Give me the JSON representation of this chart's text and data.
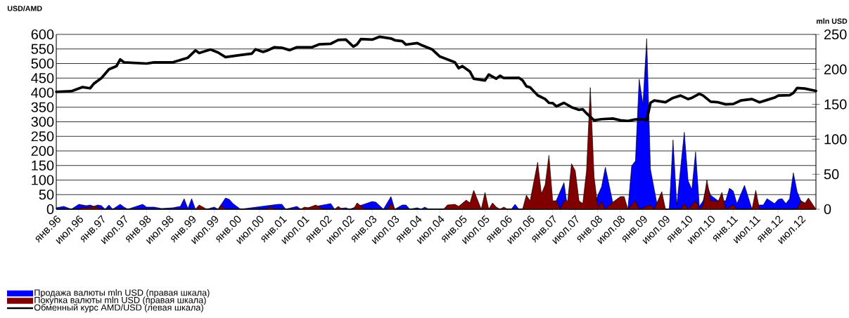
{
  "chart_data": {
    "type": "area",
    "ylabel": "USD/AMD",
    "y2label": "mln USD",
    "xlim": [
      "1996-01",
      "2012-11"
    ],
    "xticks": [
      {
        "value": "1996-01",
        "label": "янв.96"
      },
      {
        "value": "1996-07",
        "label": "июл.96"
      },
      {
        "value": "1997-01",
        "label": "янв.97"
      },
      {
        "value": "1997-07",
        "label": "июл.97"
      },
      {
        "value": "1998-01",
        "label": "янв.98"
      },
      {
        "value": "1998-07",
        "label": "июл.98"
      },
      {
        "value": "1999-01",
        "label": "янв.99"
      },
      {
        "value": "1999-07",
        "label": "июл.99"
      },
      {
        "value": "2000-01",
        "label": "янв.00"
      },
      {
        "value": "2000-07",
        "label": "июл.00"
      },
      {
        "value": "2001-01",
        "label": "янв.01"
      },
      {
        "value": "2001-07",
        "label": "июл.01"
      },
      {
        "value": "2002-01",
        "label": "янв.02"
      },
      {
        "value": "2002-07",
        "label": "июл.02"
      },
      {
        "value": "2003-01",
        "label": "янв.03"
      },
      {
        "value": "2003-07",
        "label": "июл.03"
      },
      {
        "value": "2004-01",
        "label": "янв.04"
      },
      {
        "value": "2004-07",
        "label": "июл.04"
      },
      {
        "value": "2005-01",
        "label": "янв.05"
      },
      {
        "value": "2005-07",
        "label": "июл.05"
      },
      {
        "value": "2006-01",
        "label": "янв.06"
      },
      {
        "value": "2006-07",
        "label": "июл.06"
      },
      {
        "value": "2007-01",
        "label": "янв.07"
      },
      {
        "value": "2007-07",
        "label": "июл.07"
      },
      {
        "value": "2008-01",
        "label": "янв.08"
      },
      {
        "value": "2008-07",
        "label": "июл.08"
      },
      {
        "value": "2009-01",
        "label": "янв.09"
      },
      {
        "value": "2009-07",
        "label": "июл.09"
      },
      {
        "value": "2010-01",
        "label": "янв.10"
      },
      {
        "value": "2010-07",
        "label": "июл.10"
      },
      {
        "value": "2011-01",
        "label": "янв.11"
      },
      {
        "value": "2011-07",
        "label": "июл.11"
      },
      {
        "value": "2012-01",
        "label": "янв.12"
      },
      {
        "value": "2012-07",
        "label": "июл.12"
      }
    ],
    "ylim": [
      0,
      600
    ],
    "yticks": [
      0,
      50,
      100,
      150,
      200,
      250,
      300,
      350,
      400,
      450,
      500,
      550,
      600
    ],
    "y2lim": [
      0,
      250
    ],
    "y2ticks": [
      0,
      50,
      100,
      150,
      200,
      250
    ],
    "grid": "y",
    "legend": "bottom left",
    "series": [
      {
        "name": "Продажа валюты mln USD (правая шкала)",
        "axis": "y2",
        "color": "#0000ff",
        "x": [
          "1996-01",
          "1996-03",
          "1996-05",
          "1996-07",
          "1996-09",
          "1996-10",
          "1996-11",
          "1996-12",
          "1997-01",
          "1997-02",
          "1997-03",
          "1997-04",
          "1997-06",
          "1997-07",
          "1997-08",
          "1997-12",
          "1998-01",
          "1998-03",
          "1998-05",
          "1998-08",
          "1998-10",
          "1998-11",
          "1998-12",
          "1999-01",
          "1999-02",
          "1999-05",
          "1999-07",
          "1999-08",
          "1999-10",
          "1999-11",
          "1999-12",
          "2000-02",
          "2000-12",
          "2001-01",
          "2001-02",
          "2001-05",
          "2001-06",
          "2002-02",
          "2002-03",
          "2002-06",
          "2002-07",
          "2003-01",
          "2003-02",
          "2003-04",
          "2003-06",
          "2003-07",
          "2003-09",
          "2003-10",
          "2003-11",
          "2004-01",
          "2004-02",
          "2004-03",
          "2004-04",
          "2006-02",
          "2006-03",
          "2006-04",
          "2007-01",
          "2007-02",
          "2007-04",
          "2007-05",
          "2007-12",
          "2008-01",
          "2008-02",
          "2008-03",
          "2008-05",
          "2008-09",
          "2008-10",
          "2008-11",
          "2008-12",
          "2009-01",
          "2009-02",
          "2009-03",
          "2009-05",
          "2009-08",
          "2009-09",
          "2009-10",
          "2009-12",
          "2010-01",
          "2010-02",
          "2010-03",
          "2010-04",
          "2010-05",
          "2010-06",
          "2010-07",
          "2010-09",
          "2010-11",
          "2010-12",
          "2011-01",
          "2011-02",
          "2011-04",
          "2011-06",
          "2011-08",
          "2011-09",
          "2011-10",
          "2011-12",
          "2012-01",
          "2012-02",
          "2012-03",
          "2012-04",
          "2012-05",
          "2012-06",
          "2012-07",
          "2012-11"
        ],
        "values": [
          2,
          4,
          0,
          7,
          5,
          6,
          4,
          6,
          5,
          0,
          6,
          0,
          7,
          3,
          0,
          7,
          3,
          3,
          1,
          2,
          4,
          15,
          1,
          15,
          0,
          0,
          3,
          0,
          16,
          14,
          8,
          0,
          7,
          7,
          0,
          4,
          0,
          8,
          0,
          2,
          0,
          11,
          10,
          0,
          18,
          0,
          6,
          6,
          0,
          2,
          0,
          3,
          0,
          0,
          7,
          0,
          0,
          13,
          38,
          0,
          0,
          20,
          32,
          60,
          9,
          0,
          62,
          69,
          186,
          150,
          244,
          57,
          0,
          0,
          99,
          6,
          110,
          41,
          28,
          82,
          4,
          12,
          35,
          20,
          12,
          12,
          30,
          26,
          8,
          34,
          0,
          6,
          6,
          15,
          8,
          14,
          15,
          8,
          15,
          52,
          25,
          12,
          0
        ]
      },
      {
        "name": "Покупка валюты mln USD (правая шкала)",
        "axis": "y2",
        "color": "#800000",
        "x": [
          "1996-01",
          "1996-07",
          "1996-08",
          "1996-09",
          "1996-11",
          "1996-12",
          "1997-01",
          "1999-02",
          "1999-03",
          "1999-05",
          "1999-08",
          "1999-09",
          "1999-10",
          "2000-09",
          "2000-10",
          "2000-11",
          "2001-06",
          "2001-07",
          "2001-08",
          "2001-10",
          "2001-12",
          "2002-03",
          "2002-04",
          "2002-05",
          "2002-08",
          "2002-09",
          "2002-11",
          "2003-05",
          "2003-06",
          "2003-07",
          "2004-08",
          "2004-09",
          "2004-11",
          "2004-12",
          "2005-02",
          "2005-03",
          "2005-04",
          "2005-06",
          "2005-07",
          "2005-08",
          "2005-09",
          "2005-10",
          "2005-11",
          "2005-12",
          "2006-01",
          "2006-05",
          "2006-06",
          "2006-07",
          "2006-09",
          "2006-10",
          "2006-11",
          "2006-12",
          "2007-01",
          "2007-02",
          "2007-03",
          "2007-04",
          "2007-05",
          "2007-06",
          "2007-07",
          "2007-08",
          "2007-09",
          "2007-10",
          "2007-11",
          "2007-12",
          "2008-01",
          "2008-02",
          "2008-03",
          "2008-05",
          "2008-07",
          "2008-08",
          "2008-09",
          "2008-11",
          "2008-12",
          "2009-03",
          "2009-04",
          "2009-06",
          "2009-07",
          "2009-11",
          "2009-12",
          "2010-01",
          "2010-03",
          "2010-04",
          "2010-05",
          "2010-06",
          "2010-07",
          "2010-09",
          "2010-10",
          "2010-11",
          "2011-01",
          "2011-02",
          "2011-06",
          "2011-07",
          "2011-08",
          "2012-06",
          "2012-07",
          "2012-08",
          "2012-09",
          "2012-11"
        ],
        "values": [
          0,
          0,
          3,
          2,
          4,
          3,
          0,
          0,
          6,
          0,
          0,
          5,
          0,
          0,
          4,
          0,
          0,
          3,
          2,
          6,
          0,
          0,
          4,
          0,
          0,
          9,
          0,
          0,
          8,
          0,
          0,
          6,
          7,
          4,
          13,
          9,
          27,
          0,
          24,
          0,
          9,
          3,
          0,
          3,
          0,
          0,
          20,
          12,
          67,
          22,
          35,
          77,
          12,
          12,
          0,
          12,
          12,
          65,
          55,
          12,
          8,
          55,
          174,
          47,
          3,
          11,
          0,
          10,
          18,
          18,
          0,
          12,
          0,
          6,
          0,
          25,
          0,
          0,
          8,
          0,
          12,
          0,
          5,
          42,
          12,
          11,
          24,
          0,
          6,
          0,
          0,
          27,
          0,
          0,
          12,
          8,
          16,
          0
        ]
      },
      {
        "name": "Обменный курс AMD/USD (левая шкала)",
        "type": "line",
        "axis": "y",
        "color": "#000000",
        "x": [
          "1996-01",
          "1996-05",
          "1996-08",
          "1996-10",
          "1996-11",
          "1997-01",
          "1997-03",
          "1997-05",
          "1997-06",
          "1997-07",
          "1998-01",
          "1998-03",
          "1998-08",
          "1998-10",
          "1998-12",
          "1999-02",
          "1999-03",
          "1999-06",
          "1999-08",
          "1999-10",
          "2000-02",
          "2000-05",
          "2000-06",
          "2000-08",
          "2000-09",
          "2000-11",
          "2001-01",
          "2001-03",
          "2001-05",
          "2001-09",
          "2001-11",
          "2002-02",
          "2002-04",
          "2002-06",
          "2002-08",
          "2002-09",
          "2002-10",
          "2003-01",
          "2003-03",
          "2003-06",
          "2003-07",
          "2003-09",
          "2003-10",
          "2004-01",
          "2004-02",
          "2004-05",
          "2004-07",
          "2004-11",
          "2004-12",
          "2005-01",
          "2005-03",
          "2005-04",
          "2005-07",
          "2005-08",
          "2005-10",
          "2005-11",
          "2005-12",
          "2006-04",
          "2006-05",
          "2006-06",
          "2006-07",
          "2006-09",
          "2006-11",
          "2006-12",
          "2007-01",
          "2007-02",
          "2007-04",
          "2007-06",
          "2007-08",
          "2007-09",
          "2007-10",
          "2007-12",
          "2008-02",
          "2008-05",
          "2008-07",
          "2008-09",
          "2008-11",
          "2009-01",
          "2009-02",
          "2009-03",
          "2009-04",
          "2009-07",
          "2009-09",
          "2009-11",
          "2010-01",
          "2010-02",
          "2010-04",
          "2010-05",
          "2010-07",
          "2010-09",
          "2010-11",
          "2011-01",
          "2011-03",
          "2011-06",
          "2011-08",
          "2011-10",
          "2011-12",
          "2012-01",
          "2012-04",
          "2012-05",
          "2012-06",
          "2012-08",
          "2012-11"
        ],
        "values": [
          403,
          405,
          419,
          415,
          431,
          450,
          480,
          491,
          514,
          504,
          500,
          504,
          504,
          512,
          520,
          545,
          536,
          548,
          538,
          522,
          529,
          534,
          549,
          540,
          544,
          556,
          554,
          546,
          556,
          556,
          566,
          568,
          581,
          582,
          558,
          566,
          584,
          582,
          592,
          586,
          580,
          577,
          565,
          570,
          564,
          548,
          524,
          504,
          484,
          491,
          472,
          448,
          442,
          462,
          448,
          458,
          450,
          451,
          442,
          422,
          418,
          391,
          378,
          365,
          364,
          353,
          365,
          350,
          341,
          343,
          329,
          305,
          309,
          311,
          305,
          303,
          308,
          308,
          305,
          365,
          373,
          367,
          382,
          390,
          378,
          382,
          396,
          390,
          369,
          367,
          360,
          361,
          373,
          378,
          367,
          375,
          383,
          390,
          391,
          399,
          416,
          414,
          406
        ]
      }
    ]
  }
}
